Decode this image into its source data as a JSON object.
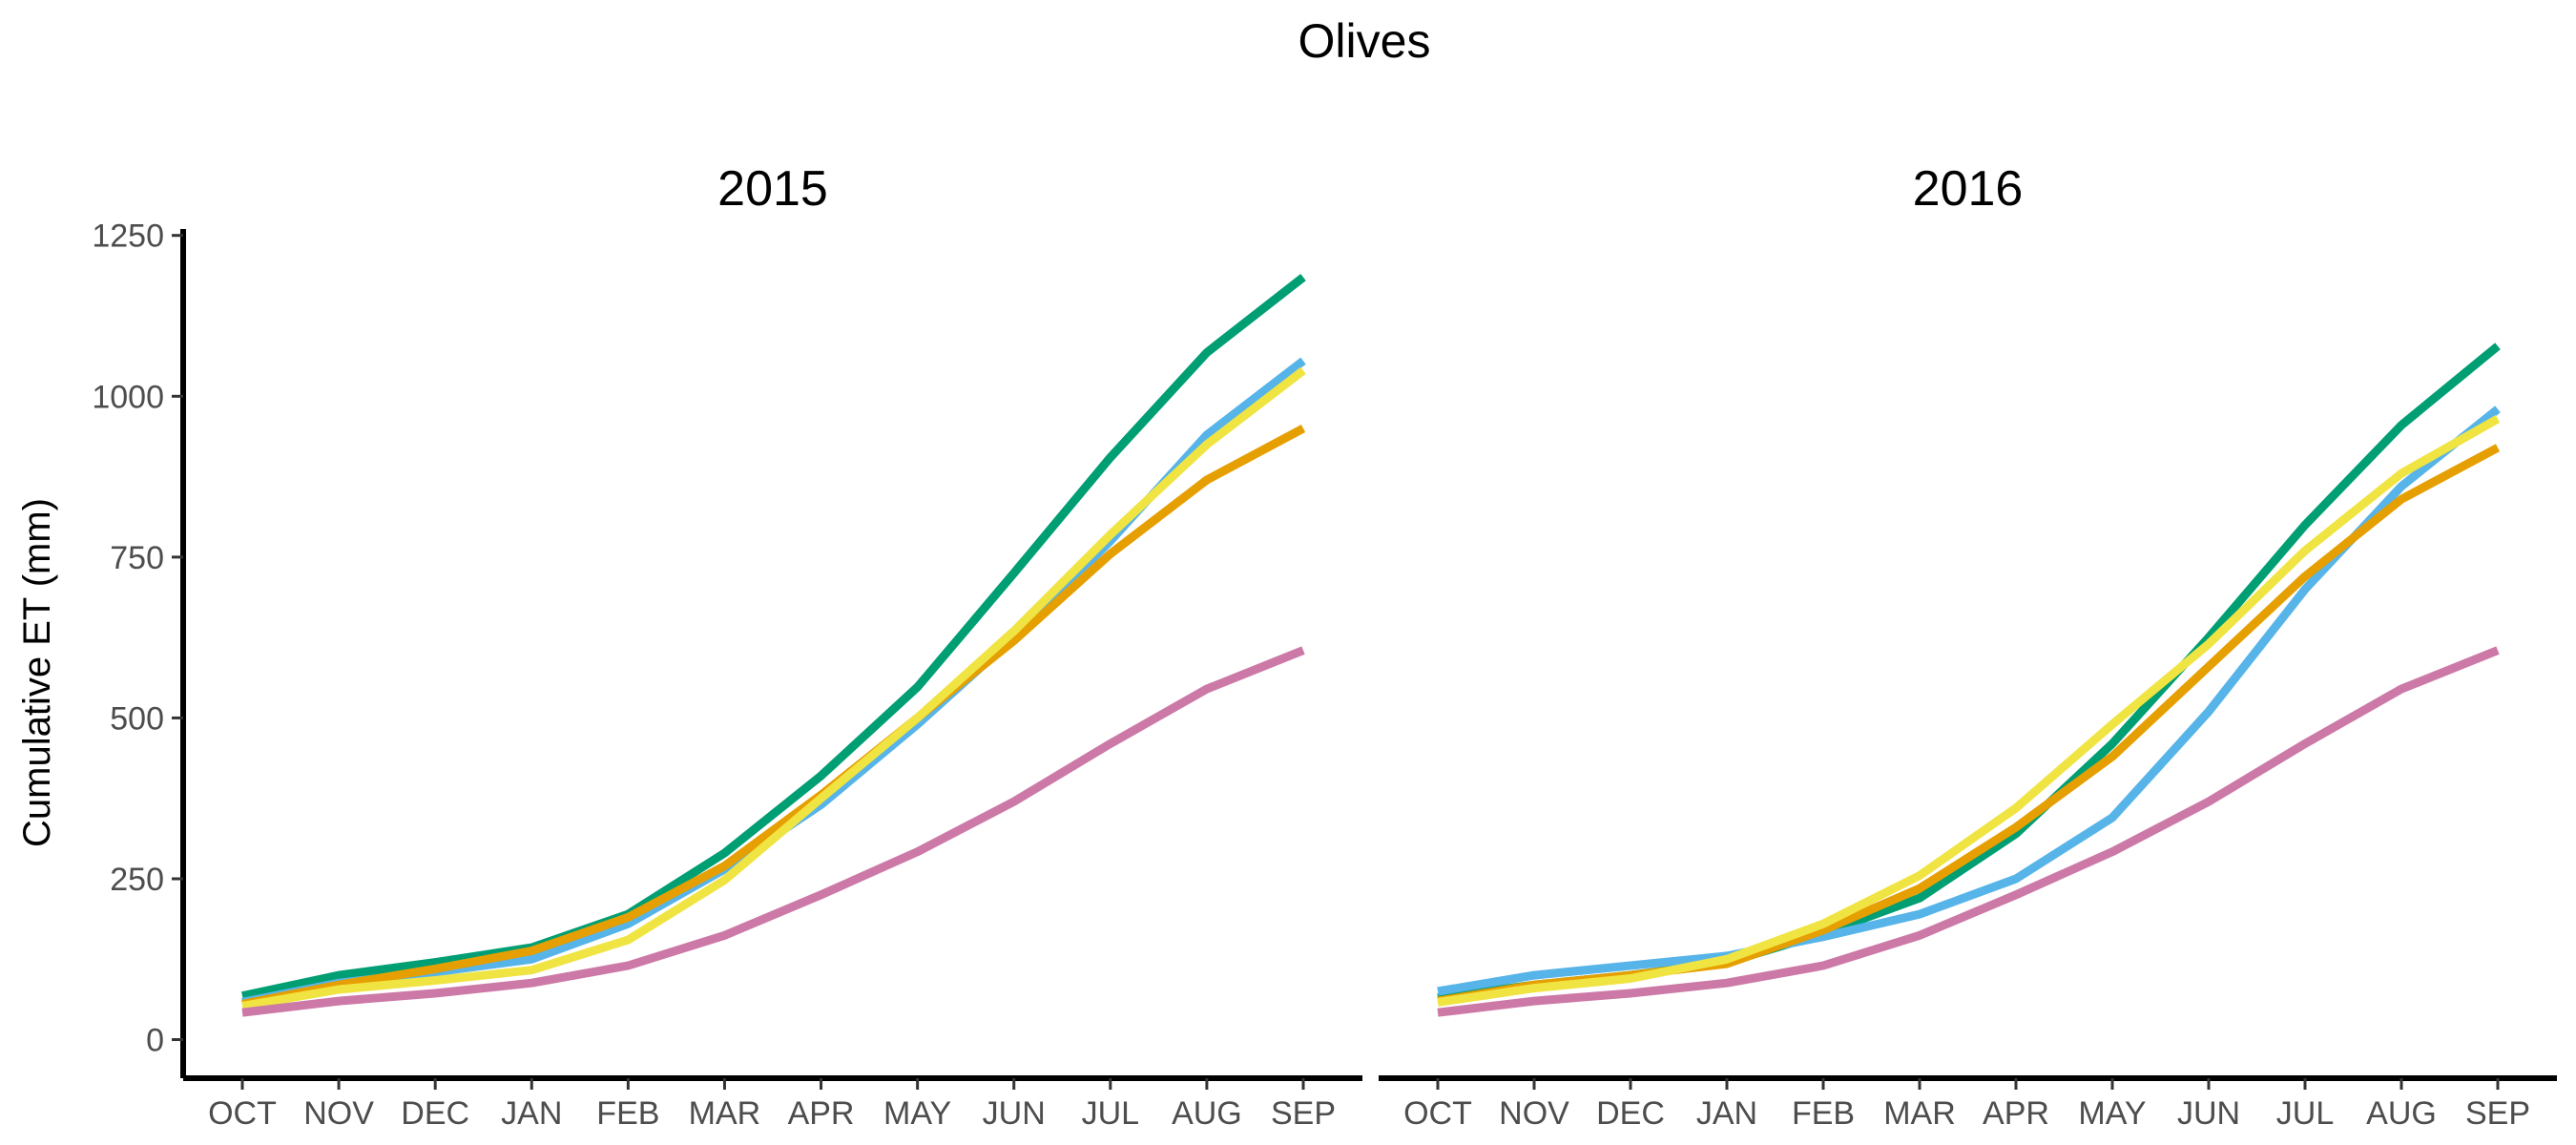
{
  "chart_data": {
    "type": "line",
    "title": "Olives",
    "ylabel": "Cumulative ET (mm)",
    "xlabel": "",
    "categories": [
      "OCT",
      "NOV",
      "DEC",
      "JAN",
      "FEB",
      "MAR",
      "APR",
      "MAY",
      "JUN",
      "JUL",
      "AUG",
      "SEP"
    ],
    "yticks": [
      0,
      250,
      500,
      750,
      1000,
      1250
    ],
    "ytick_labels": [
      "0",
      "250",
      "500",
      "750",
      "1000",
      "1250"
    ],
    "ylim": [
      -60,
      1260
    ],
    "grid": false,
    "legend": "none",
    "panels": [
      {
        "label": "2015",
        "series": [
          {
            "color": "#009E73",
            "values": [
              68,
              100,
              120,
              143,
              195,
              290,
              410,
              548,
              725,
              905,
              1068,
              1185
            ]
          },
          {
            "color": "#56B4E9",
            "values": [
              58,
              88,
              105,
              125,
              180,
              265,
              365,
              490,
              625,
              775,
              940,
              1055
            ]
          },
          {
            "color": "#E69F00",
            "values": [
              55,
              85,
              110,
              138,
              190,
              270,
              380,
              500,
              620,
              755,
              870,
              950
            ]
          },
          {
            "color": "#F0E442",
            "values": [
              52,
              78,
              92,
              108,
              155,
              248,
              375,
              500,
              635,
              785,
              925,
              1040
            ]
          },
          {
            "color": "#CC79A7",
            "values": [
              42,
              60,
              72,
              88,
              115,
              162,
              225,
              292,
              370,
              460,
              545,
              605
            ]
          }
        ]
      },
      {
        "label": "2016",
        "series": [
          {
            "color": "#009E73",
            "values": [
              65,
              85,
              100,
              120,
              165,
              220,
              320,
              460,
              625,
              800,
              955,
              1078
            ]
          },
          {
            "color": "#56B4E9",
            "values": [
              75,
              100,
              115,
              130,
              160,
              195,
              250,
              345,
              510,
              700,
              860,
              980
            ]
          },
          {
            "color": "#E69F00",
            "values": [
              60,
              85,
              100,
              118,
              170,
              235,
              330,
              440,
              580,
              720,
              840,
              920
            ]
          },
          {
            "color": "#F0E442",
            "values": [
              58,
              80,
              95,
              125,
              180,
              255,
              360,
              490,
              615,
              760,
              880,
              965
            ]
          },
          {
            "color": "#CC79A7",
            "values": [
              42,
              60,
              72,
              88,
              115,
              162,
              225,
              292,
              370,
              460,
              545,
              605
            ]
          }
        ]
      }
    ]
  }
}
